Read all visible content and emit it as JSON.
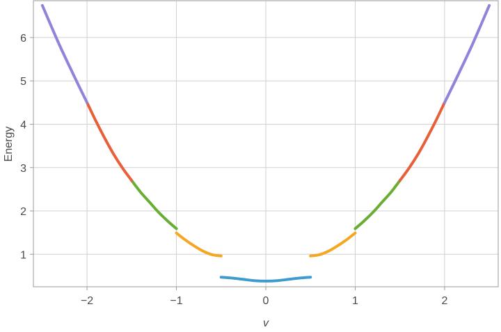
{
  "chart_data": {
    "type": "line",
    "title": "",
    "xlabel": "v",
    "ylabel": "Energy",
    "xlim": [
      -2.6,
      2.6
    ],
    "ylim": [
      0.25,
      6.85
    ],
    "xticks": [
      -2,
      -1,
      0,
      1,
      2
    ],
    "xtick_labels": [
      "−2",
      "−1",
      "0",
      "1",
      "2"
    ],
    "yticks": [
      1,
      2,
      3,
      4,
      5,
      6
    ],
    "ytick_labels": [
      "1",
      "2",
      "3",
      "4",
      "5",
      "6"
    ],
    "grid": true,
    "legend": "none",
    "colors": {
      "blue": "#3f9bcf",
      "orange": "#f5a623",
      "green": "#6aad35",
      "red": "#e8603a",
      "purple": "#8f84d9"
    },
    "series": [
      {
        "color": "blue",
        "x": [
          -0.5,
          -0.375,
          -0.25,
          -0.125,
          0.0,
          0.125,
          0.25,
          0.375,
          0.5
        ],
        "y": [
          0.47,
          0.45,
          0.42,
          0.39,
          0.38,
          0.39,
          0.42,
          0.45,
          0.47
        ]
      },
      {
        "color": "orange",
        "x": [
          -1.0,
          -0.9,
          -0.8,
          -0.7,
          -0.6,
          -0.5
        ],
        "y": [
          1.49,
          1.33,
          1.19,
          1.07,
          0.99,
          0.96
        ]
      },
      {
        "color": "orange",
        "x": [
          0.5,
          0.6,
          0.7,
          0.8,
          0.9,
          1.0
        ],
        "y": [
          0.96,
          0.99,
          1.07,
          1.19,
          1.33,
          1.49
        ]
      },
      {
        "color": "green",
        "x": [
          -1.5,
          -1.4,
          -1.3,
          -1.2,
          -1.1,
          -1.0
        ],
        "y": [
          2.7,
          2.43,
          2.2,
          1.97,
          1.77,
          1.59
        ]
      },
      {
        "color": "green",
        "x": [
          1.0,
          1.1,
          1.2,
          1.3,
          1.4,
          1.5
        ],
        "y": [
          1.59,
          1.77,
          1.97,
          2.2,
          2.43,
          2.7
        ]
      },
      {
        "color": "red",
        "x": [
          -2.0,
          -1.9,
          -1.8,
          -1.7,
          -1.6,
          -1.5
        ],
        "y": [
          4.5,
          4.07,
          3.67,
          3.3,
          2.98,
          2.7
        ]
      },
      {
        "color": "red",
        "x": [
          1.5,
          1.6,
          1.7,
          1.8,
          1.9,
          2.0
        ],
        "y": [
          2.7,
          2.98,
          3.3,
          3.67,
          4.07,
          4.5
        ]
      },
      {
        "color": "purple",
        "x": [
          -2.5,
          -2.4,
          -2.3,
          -2.2,
          -2.1,
          -2.0
        ],
        "y": [
          6.74,
          6.26,
          5.79,
          5.35,
          4.92,
          4.5
        ]
      },
      {
        "color": "purple",
        "x": [
          2.0,
          2.1,
          2.2,
          2.3,
          2.4,
          2.5
        ],
        "y": [
          4.5,
          4.92,
          5.35,
          5.79,
          6.26,
          6.74
        ]
      }
    ]
  }
}
